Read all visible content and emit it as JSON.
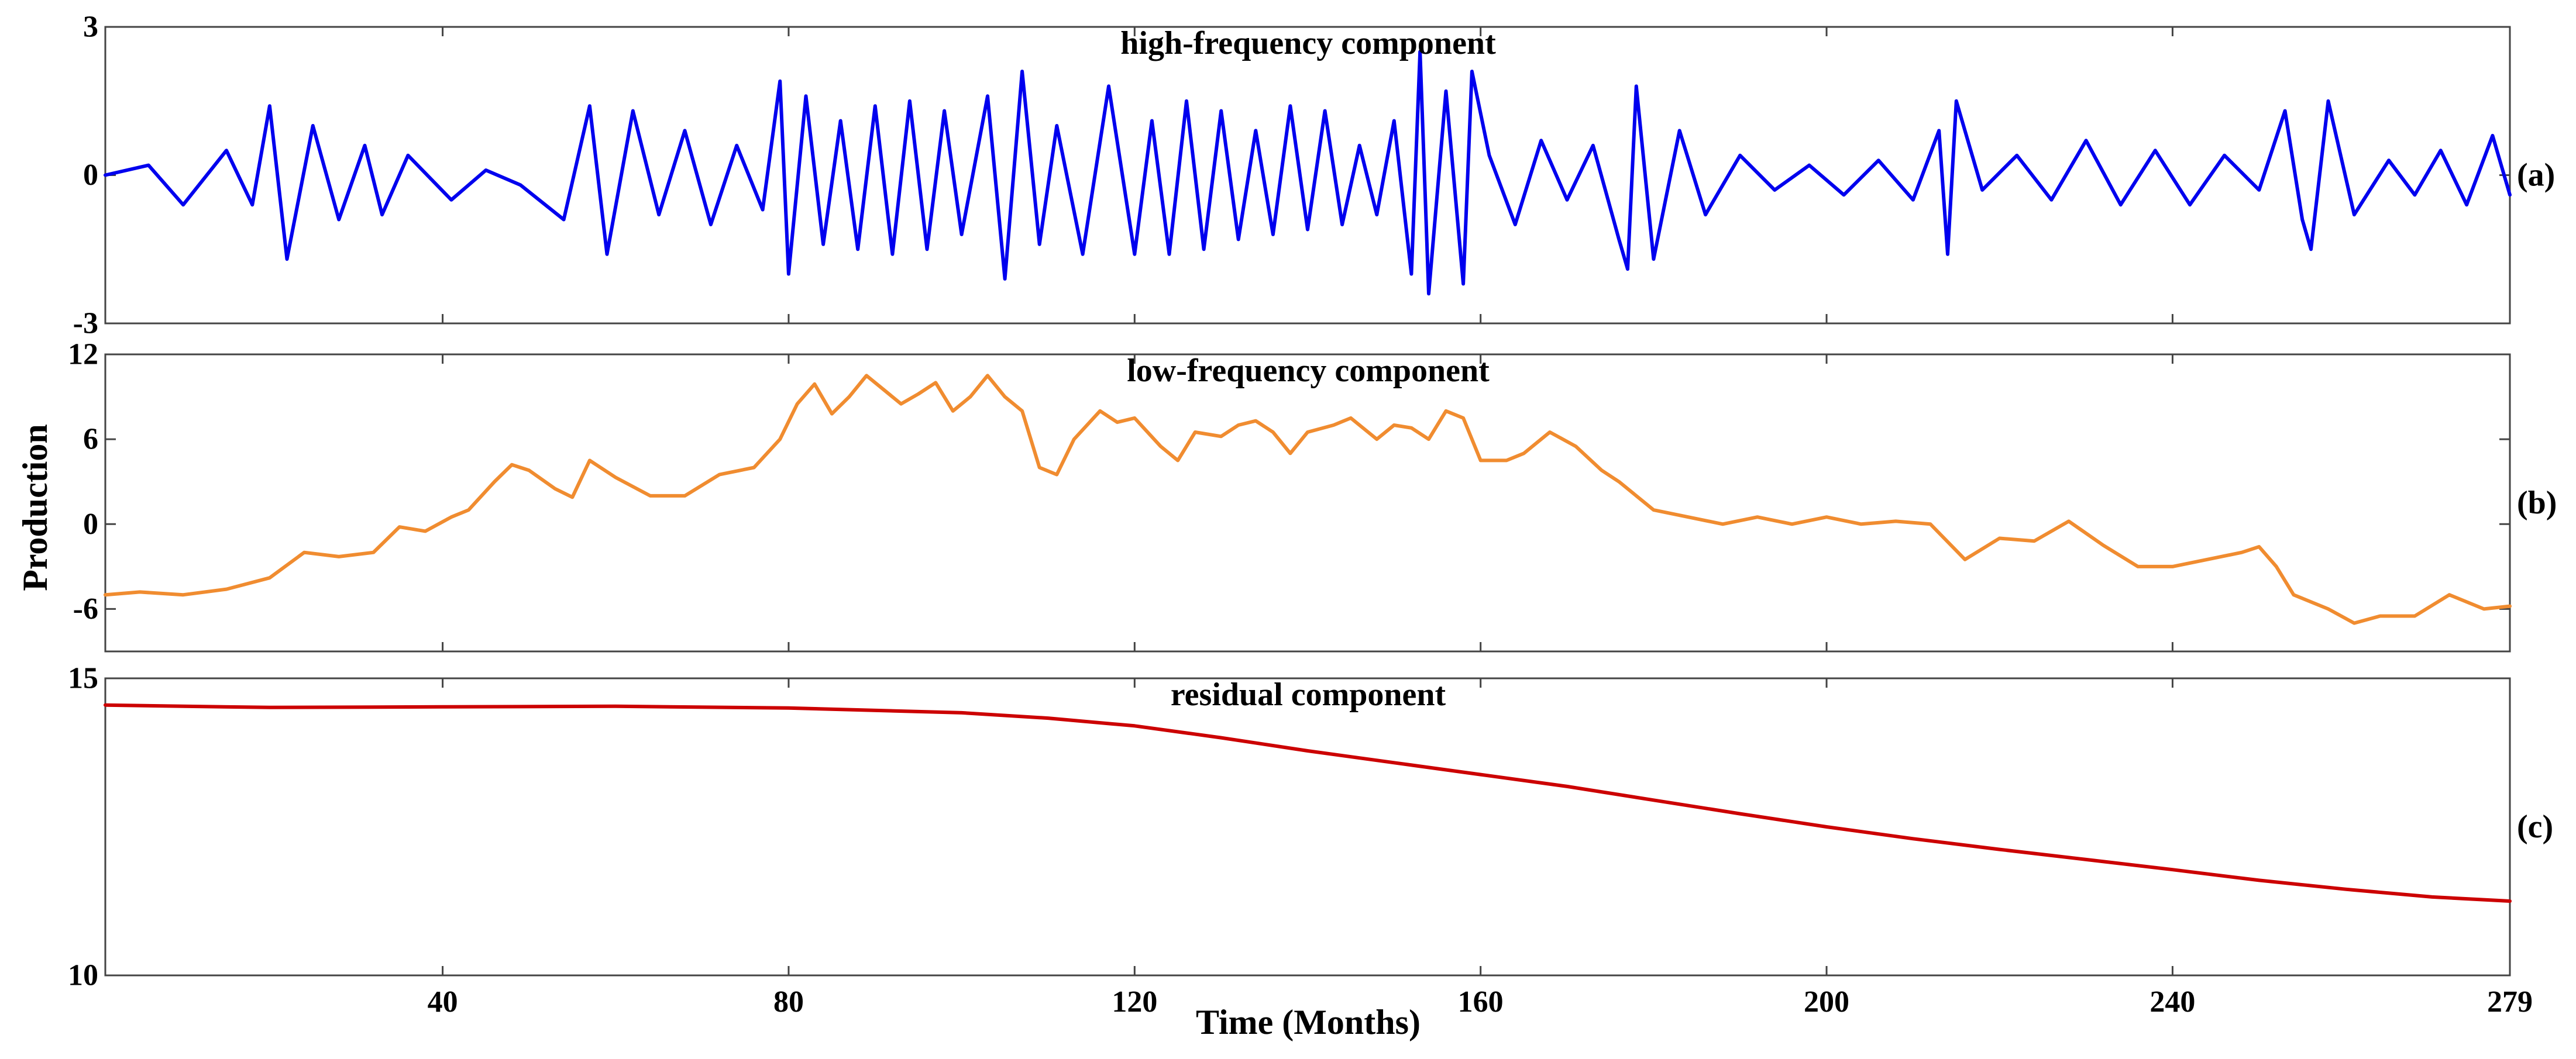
{
  "chart_data": {
    "type": "line",
    "xlabel": "Time (Months)",
    "ylabel": "Production",
    "xlim": [
      1,
      279
    ],
    "x_ticks": [
      40,
      80,
      120,
      160,
      200,
      240,
      279
    ],
    "x_tick_labels": [
      "40",
      "80",
      "120",
      "160",
      "200",
      "240",
      "279"
    ],
    "panels": [
      {
        "title": "high-frequency component",
        "tag": "(a)",
        "color": "#0000ee",
        "ylim": [
          -3,
          3
        ],
        "y_ticks": [
          -3,
          0,
          3
        ],
        "y_tick_labels": [
          "-3",
          "0",
          "3"
        ],
        "x": [
          1,
          6,
          10,
          15,
          18,
          20,
          22,
          25,
          28,
          31,
          33,
          36,
          41,
          45,
          49,
          54,
          57,
          59,
          62,
          65,
          68,
          71,
          74,
          77,
          79,
          80,
          82,
          84,
          86,
          88,
          90,
          92,
          94,
          96,
          98,
          100,
          103,
          105,
          107,
          109,
          111,
          114,
          117,
          120,
          122,
          124,
          126,
          128,
          130,
          132,
          134,
          136,
          138,
          140,
          142,
          144,
          146,
          148,
          150,
          152,
          153,
          154,
          156,
          158,
          159,
          161,
          164,
          167,
          170,
          173,
          176,
          177,
          178,
          180,
          183,
          186,
          190,
          194,
          198,
          202,
          206,
          210,
          213,
          214,
          215,
          218,
          222,
          226,
          230,
          234,
          238,
          242,
          246,
          250,
          253,
          255,
          256,
          258,
          261,
          265,
          268,
          271,
          274,
          277,
          279
        ],
        "values": [
          0.0,
          0.2,
          -0.6,
          0.5,
          -0.6,
          1.4,
          -1.7,
          1.0,
          -0.9,
          0.6,
          -0.8,
          0.4,
          -0.5,
          0.1,
          -0.2,
          -0.9,
          1.4,
          -1.6,
          1.3,
          -0.8,
          0.9,
          -1.0,
          0.6,
          -0.7,
          1.9,
          -2.0,
          1.6,
          -1.4,
          1.1,
          -1.5,
          1.4,
          -1.6,
          1.5,
          -1.5,
          1.3,
          -1.2,
          1.6,
          -2.1,
          2.1,
          -1.4,
          1.0,
          -1.6,
          1.8,
          -1.6,
          1.1,
          -1.6,
          1.5,
          -1.5,
          1.3,
          -1.3,
          0.9,
          -1.2,
          1.4,
          -1.1,
          1.3,
          -1.0,
          0.6,
          -0.8,
          1.1,
          -2.0,
          2.5,
          -2.4,
          1.7,
          -2.2,
          2.1,
          0.4,
          -1.0,
          0.7,
          -0.5,
          0.6,
          -1.3,
          -1.9,
          1.8,
          -1.7,
          0.9,
          -0.8,
          0.4,
          -0.3,
          0.2,
          -0.4,
          0.3,
          -0.5,
          0.9,
          -1.6,
          1.5,
          -0.3,
          0.4,
          -0.5,
          0.7,
          -0.6,
          0.5,
          -0.6,
          0.4,
          -0.3,
          1.3,
          -0.9,
          -1.5,
          1.5,
          -0.8,
          0.3,
          -0.4,
          0.5,
          -0.6,
          0.8,
          -0.4
        ]
      },
      {
        "title": "low-frequency component",
        "tag": "(b)",
        "color": "#f08c30",
        "ylim": [
          -9,
          12
        ],
        "y_ticks": [
          -6,
          0,
          6,
          12
        ],
        "y_tick_labels": [
          "-6",
          "0",
          "6",
          "12"
        ],
        "x": [
          1,
          5,
          10,
          15,
          20,
          24,
          28,
          32,
          35,
          38,
          41,
          43,
          46,
          48,
          50,
          53,
          55,
          57,
          60,
          64,
          68,
          72,
          76,
          79,
          81,
          83,
          85,
          87,
          89,
          91,
          93,
          95,
          97,
          99,
          101,
          103,
          105,
          107,
          109,
          111,
          113,
          116,
          118,
          120,
          123,
          125,
          127,
          130,
          132,
          134,
          136,
          138,
          140,
          143,
          145,
          148,
          150,
          152,
          154,
          156,
          158,
          160,
          163,
          165,
          168,
          171,
          174,
          176,
          180,
          184,
          188,
          192,
          196,
          200,
          204,
          208,
          212,
          216,
          220,
          224,
          228,
          232,
          236,
          240,
          244,
          248,
          250,
          252,
          254,
          258,
          261,
          264,
          268,
          272,
          276,
          279
        ],
        "values": [
          -5.0,
          -4.8,
          -5.0,
          -4.6,
          -3.8,
          -2.0,
          -2.3,
          -2.0,
          -0.2,
          -0.5,
          0.5,
          1.0,
          3.0,
          4.2,
          3.8,
          2.5,
          1.9,
          4.5,
          3.3,
          2.0,
          2.0,
          3.5,
          4.0,
          6.0,
          8.5,
          9.9,
          7.8,
          9.0,
          10.5,
          9.5,
          8.5,
          9.2,
          10.0,
          8.0,
          9.0,
          10.5,
          9.0,
          8.0,
          4.0,
          3.5,
          6.0,
          8.0,
          7.2,
          7.5,
          5.5,
          4.5,
          6.5,
          6.2,
          7.0,
          7.3,
          6.5,
          5.0,
          6.5,
          7.0,
          7.5,
          6.0,
          7.0,
          6.8,
          6.0,
          8.0,
          7.5,
          4.5,
          4.5,
          5.0,
          6.5,
          5.5,
          3.8,
          3.0,
          1.0,
          0.5,
          0.0,
          0.5,
          0.0,
          0.5,
          0.0,
          0.2,
          0.0,
          -2.5,
          -1.0,
          -1.2,
          0.2,
          -1.5,
          -3.0,
          -3.0,
          -2.5,
          -2.0,
          -1.6,
          -3.0,
          -5.0,
          -6.0,
          -7.0,
          -6.5,
          -6.5,
          -5.0,
          -6.0,
          -5.8
        ]
      },
      {
        "title": "residual component",
        "tag": "(c)",
        "color": "#cc0000",
        "ylim": [
          10,
          15
        ],
        "y_ticks": [
          10,
          15
        ],
        "y_tick_labels": [
          "10",
          "15"
        ],
        "x": [
          1,
          10,
          20,
          40,
          60,
          80,
          100,
          110,
          120,
          130,
          140,
          150,
          160,
          170,
          180,
          190,
          200,
          210,
          220,
          230,
          240,
          250,
          260,
          270,
          279
        ],
        "values": [
          14.55,
          14.53,
          14.51,
          14.52,
          14.53,
          14.5,
          14.42,
          14.33,
          14.2,
          14.0,
          13.78,
          13.58,
          13.38,
          13.18,
          12.95,
          12.72,
          12.5,
          12.3,
          12.12,
          11.95,
          11.78,
          11.6,
          11.45,
          11.32,
          11.25
        ]
      }
    ]
  }
}
